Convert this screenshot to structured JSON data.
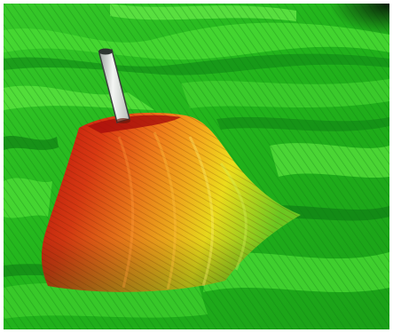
{
  "scene": {
    "description_label": "",
    "palette": {
      "terrain_light": "#4fe03a",
      "terrain_mid": "#22b51c",
      "terrain_dark": "#0b7a14",
      "peak_red": "#c4140f",
      "peak_orange": "#f07a1a",
      "peak_yellow": "#f2e21c",
      "peak_green": "#8fd41f",
      "marker_light": "#e9ecec",
      "marker_dark": "#3a403c",
      "corner_dark": "#0a1a0a"
    },
    "marker": {
      "name": "survey-pole"
    }
  }
}
